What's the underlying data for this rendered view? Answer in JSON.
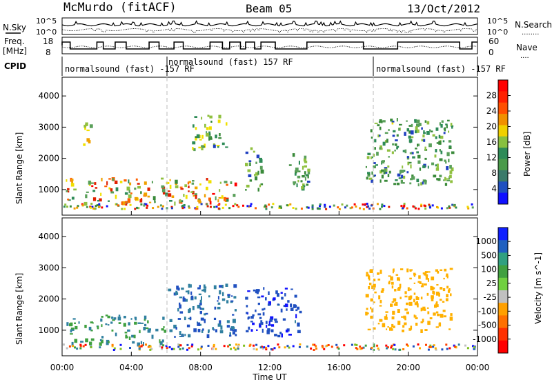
{
  "header": {
    "station": "McMurdo (fitACF)",
    "beam": "Beam 05",
    "date": "13/Oct/2012"
  },
  "noise_panel": {
    "left_label": "N.Sky",
    "right_label": "N.Search",
    "right_legend": "........",
    "left_ticks": [
      "10^5",
      "10^0"
    ],
    "right_ticks": [
      "10^5",
      "10^0"
    ]
  },
  "freq_panel": {
    "left_label_1": "Freq.",
    "left_label_2": "[MHz]",
    "right_label": "Nave",
    "right_legend": "....",
    "left_ticks": [
      "18",
      "8"
    ],
    "right_ticks": [
      "60",
      "0"
    ],
    "freq_range": [
      8,
      18
    ],
    "nave_range": [
      0,
      60
    ]
  },
  "cpid_panel": {
    "label": "CPID",
    "segments": [
      {
        "start_hr": 0,
        "end_hr": 6,
        "text": "normalsound (fast) -157 RF"
      },
      {
        "start_hr": 6,
        "end_hr": 18,
        "text": "normalsound (fast) 157 RF"
      },
      {
        "start_hr": 18,
        "end_hr": 24,
        "text": "normalsound (fast) -157 RF"
      }
    ]
  },
  "x_axis": {
    "label": "Time UT",
    "range_hr": [
      0,
      24
    ],
    "ticks": [
      "00:00",
      "04:00",
      "08:00",
      "12:00",
      "16:00",
      "20:00",
      "00:00"
    ]
  },
  "colors": {
    "power": [
      "#1010ff",
      "#2040c0",
      "#3a8a3a",
      "#5aa05a",
      "#2e8b57",
      "#90c040",
      "#f0e000",
      "#f0a000",
      "#ff6000",
      "#e02000",
      "#ff0000"
    ],
    "velocity": [
      "#ff0000",
      "#ff4000",
      "#ff8000",
      "#ffb000",
      "#c0c0c0",
      "#80c020",
      "#40a040",
      "#3080a0",
      "#2050c0",
      "#1010ff"
    ],
    "power_scale_stops": [
      "#1010ff",
      "#2050c0",
      "#3a7a6a",
      "#4a9a4a",
      "#2e8b57",
      "#88c040",
      "#f0d000",
      "#f09000",
      "#ff5000",
      "#ff2000",
      "#ff0000"
    ],
    "velocity_scale_stops": [
      "#ff0000",
      "#ff3000",
      "#ff7000",
      "#ffa000",
      "#c0c0c0",
      "#70d040",
      "#40a040",
      "#30a080",
      "#2060c0",
      "#1020ff"
    ]
  },
  "chart_data": [
    {
      "type": "heatmap",
      "name": "power",
      "ylabel": "Slant Range [km]",
      "yticks": [
        "1000",
        "2000",
        "3000",
        "4000"
      ],
      "ylim": [
        180,
        4600
      ],
      "xlim": [
        0,
        24
      ],
      "colorbar_label": "Power [dB]",
      "colorbar_ticks": [
        "4",
        "8",
        "12",
        "16",
        "20",
        "24",
        "28"
      ],
      "colorbar_range": [
        0,
        32
      ],
      "regions": [
        {
          "t0": 0.2,
          "t1": 10.0,
          "r0": 600,
          "r1": 1400,
          "value": 24
        },
        {
          "t0": 1.2,
          "t1": 1.6,
          "r0": 2400,
          "r1": 3300,
          "value": 18
        },
        {
          "t0": 7.5,
          "t1": 9.5,
          "r0": 2300,
          "r1": 3400,
          "value": 16
        },
        {
          "t0": 10.5,
          "t1": 11.5,
          "r0": 1000,
          "r1": 2400,
          "value": 14
        },
        {
          "t0": 13.0,
          "t1": 14.2,
          "r0": 1000,
          "r1": 2200,
          "value": 14
        },
        {
          "t0": 17.5,
          "t1": 22.5,
          "r0": 1200,
          "r1": 3300,
          "value": 14
        }
      ]
    },
    {
      "type": "heatmap",
      "name": "velocity",
      "ylabel": "Slant Range [km]",
      "yticks": [
        "1000",
        "2000",
        "3000",
        "4000"
      ],
      "ylim": [
        180,
        4600
      ],
      "xlim": [
        0,
        24
      ],
      "colorbar_label": "Velocity [m s^-1]",
      "colorbar_ticks": [
        "1000",
        "500",
        "100",
        "25",
        "-25",
        "-100",
        "-500",
        "-1000"
      ],
      "regions": [
        {
          "t0": 0.2,
          "t1": 6.0,
          "r0": 600,
          "r1": 1500,
          "value": 100
        },
        {
          "t0": 6.0,
          "t1": 10.0,
          "r0": 800,
          "r1": 2500,
          "value": 500
        },
        {
          "t0": 10.5,
          "t1": 13.8,
          "r0": 800,
          "r1": 2400,
          "value": 800
        },
        {
          "t0": 17.5,
          "t1": 22.5,
          "r0": 1000,
          "r1": 3000,
          "value": -300
        }
      ]
    }
  ]
}
